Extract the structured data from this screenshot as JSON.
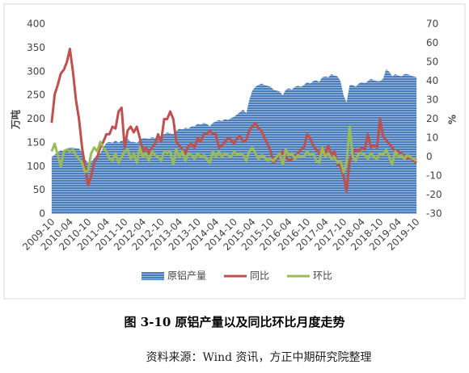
{
  "chart_data": {
    "type": "area",
    "ylabel": "万吨",
    "y2label": "%",
    "caption": "图 3-10  原铝产量以及同比环比月度走势",
    "source": "资料来源：Wind 资讯，方正中期研究院整理",
    "grid": false,
    "legend": "bottom",
    "ylim": [
      0,
      400
    ],
    "yticks": [
      0,
      50,
      100,
      150,
      200,
      250,
      300,
      350,
      400
    ],
    "y2lim": [
      -30,
      70
    ],
    "y2ticks": [
      -30,
      -20,
      -10,
      0,
      10,
      20,
      30,
      40,
      50,
      60,
      70
    ],
    "categories": [
      "2009-10",
      null,
      null,
      null,
      null,
      null,
      "2010-04",
      null,
      null,
      null,
      null,
      null,
      "2010-10",
      null,
      null,
      null,
      null,
      null,
      "2011-04",
      null,
      null,
      null,
      null,
      null,
      "2011-10",
      null,
      null,
      null,
      null,
      null,
      "2012-04",
      null,
      null,
      null,
      null,
      null,
      "2012-10",
      null,
      null,
      null,
      null,
      null,
      "2013-04",
      null,
      null,
      null,
      null,
      null,
      "2013-10",
      null,
      null,
      null,
      null,
      null,
      "2014-04",
      null,
      null,
      null,
      null,
      null,
      "2014-10",
      null,
      null,
      null,
      null,
      null,
      "2015-04",
      null,
      null,
      null,
      null,
      null,
      "2015-10",
      null,
      null,
      null,
      null,
      null,
      "2016-04",
      null,
      null,
      null,
      null,
      null,
      "2016-10",
      null,
      null,
      null,
      null,
      null,
      "2017-04",
      null,
      null,
      null,
      null,
      null,
      "2017-10",
      null,
      null,
      null,
      null,
      null,
      "2018-04",
      null,
      null,
      null,
      null,
      null,
      "2018-10",
      null,
      null,
      null,
      null,
      null,
      "2019-04",
      null,
      null,
      null,
      null,
      null,
      "2019-10"
    ],
    "series": [
      {
        "name": "原铝产量",
        "type": "area",
        "color": "#4a7ebb",
        "values": [
          120,
          125,
          130,
          135,
          132,
          138,
          140,
          140,
          138,
          138,
          130,
          115,
          108,
          110,
          118,
          125,
          128,
          140,
          150,
          152,
          150,
          155,
          150,
          155,
          155,
          158,
          152,
          152,
          150,
          155,
          160,
          160,
          158,
          162,
          160,
          162,
          165,
          168,
          172,
          170,
          168,
          175,
          180,
          178,
          182,
          180,
          185,
          185,
          190,
          188,
          192,
          190,
          185,
          192,
          195,
          198,
          196,
          200,
          198,
          202,
          205,
          210,
          215,
          220,
          212,
          240,
          260,
          268,
          272,
          275,
          272,
          270,
          268,
          262,
          260,
          258,
          250,
          262,
          265,
          262,
          268,
          270,
          268,
          272,
          278,
          275,
          280,
          282,
          278,
          288,
          290,
          288,
          295,
          292,
          290,
          280,
          250,
          235,
          272,
          272,
          268,
          275,
          278,
          276,
          280,
          285,
          282,
          280,
          280,
          285,
          305,
          300,
          290,
          295,
          292,
          290,
          295,
          295,
          292,
          290,
          288
        ]
      },
      {
        "name": "同比",
        "type": "line",
        "axis": "y2",
        "color": "#c0504d",
        "values": [
          18,
          33,
          38,
          44,
          46,
          50,
          57,
          45,
          30,
          20,
          5,
          -5,
          -15,
          -10,
          -3,
          0,
          5,
          8,
          12,
          12,
          16,
          15,
          24,
          26,
          5,
          14,
          16,
          13,
          16,
          10,
          3,
          5,
          2,
          5,
          7,
          12,
          8,
          20,
          20,
          24,
          20,
          8,
          6,
          4,
          2,
          6,
          7,
          5,
          10,
          8,
          12,
          12,
          14,
          12,
          12,
          5,
          6,
          8,
          10,
          9,
          7,
          10,
          11,
          8,
          9,
          14,
          16,
          18,
          15,
          14,
          10,
          7,
          3,
          -3,
          -1,
          1,
          3,
          0,
          -2,
          -1,
          0,
          2,
          4,
          5,
          12,
          10,
          6,
          4,
          2,
          5,
          2,
          6,
          1,
          3,
          -4,
          -5,
          -10,
          -18,
          -2,
          2,
          4,
          3,
          5,
          4,
          12,
          5,
          6,
          5,
          20,
          11,
          9,
          7,
          5,
          3,
          3,
          2,
          0,
          -1,
          0,
          -2,
          -3
        ]
      },
      {
        "name": "环比",
        "type": "line",
        "axis": "y2",
        "color": "#9bbb59",
        "values": [
          3,
          7,
          1,
          -5,
          3,
          4,
          3,
          4,
          1,
          -1,
          -3,
          -8,
          -7,
          2,
          5,
          3,
          8,
          5,
          3,
          -1,
          -2,
          2,
          -3,
          0,
          3,
          4,
          -1,
          2,
          -3,
          5,
          0,
          2,
          -2,
          3,
          1,
          0,
          -2,
          3,
          2,
          3,
          -4,
          4,
          0,
          3,
          -2,
          2,
          1,
          -1,
          2,
          0,
          1,
          -1,
          -3,
          3,
          0,
          3,
          0,
          2,
          1,
          0,
          3,
          1,
          2,
          1,
          -2,
          3,
          5,
          2,
          -1,
          1,
          0,
          -2,
          -1,
          -2,
          0,
          2,
          -4,
          4,
          1,
          2,
          -1,
          1,
          0,
          0,
          3,
          1,
          2,
          -2,
          -3,
          5,
          0,
          2,
          -1,
          0,
          -3,
          -2,
          -8,
          -3,
          16,
          0,
          -2,
          2,
          2,
          1,
          -1,
          2,
          0,
          -1,
          2,
          1,
          4,
          0,
          -4,
          3,
          0,
          1,
          -1,
          1,
          0,
          -1,
          -2
        ]
      }
    ]
  }
}
